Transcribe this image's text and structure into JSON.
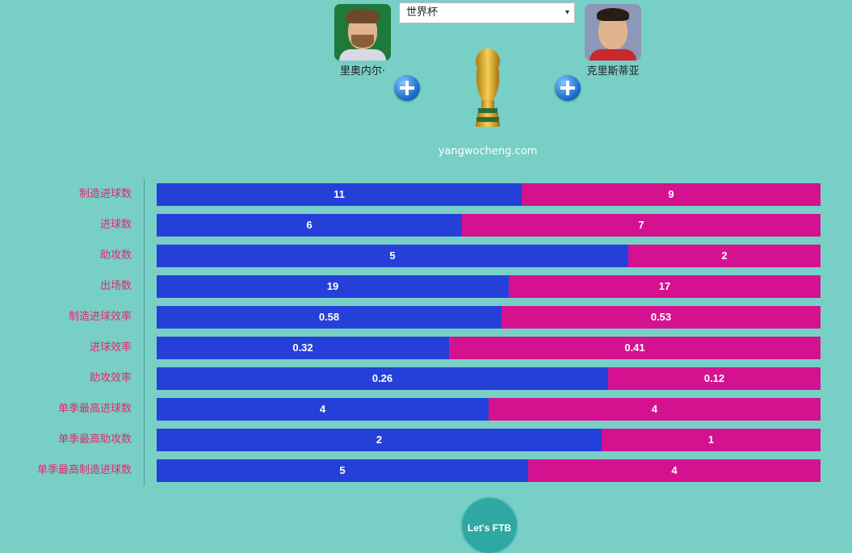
{
  "competition": {
    "selected": "世界杯",
    "arrow": "▾"
  },
  "players": [
    {
      "name": "里奥内尔·",
      "photo": "player-photo-left"
    },
    {
      "name": "克里斯蒂亚",
      "photo": "player-photo-right"
    }
  ],
  "site": "yangwocheng.com",
  "logo_text": "Let's FTB",
  "colors": {
    "player1": "#2540d9",
    "player2": "#d4128f",
    "label": "#e6256f",
    "background": "#78cfc6"
  },
  "icons": {
    "add": "plus-circle-icon",
    "trophy": "world-cup-trophy-icon"
  },
  "stats": [
    {
      "label": "制造进球数",
      "left": "11",
      "right": "9",
      "left_share": 0.55
    },
    {
      "label": "进球数",
      "left": "6",
      "right": "7",
      "left_share": 0.46
    },
    {
      "label": "助攻数",
      "left": "5",
      "right": "2",
      "left_share": 0.71
    },
    {
      "label": "出场数",
      "left": "19",
      "right": "17",
      "left_share": 0.53
    },
    {
      "label": "制造进球效率",
      "left": "0.58",
      "right": "0.53",
      "left_share": 0.52
    },
    {
      "label": "进球效率",
      "left": "0.32",
      "right": "0.41",
      "left_share": 0.44
    },
    {
      "label": "助攻效率",
      "left": "0.26",
      "right": "0.12",
      "left_share": 0.68
    },
    {
      "label": "单季最高进球数",
      "left": "4",
      "right": "4",
      "left_share": 0.5
    },
    {
      "label": "单季最高助攻数",
      "left": "2",
      "right": "1",
      "left_share": 0.67
    },
    {
      "label": "单季最高制造进球数",
      "left": "5",
      "right": "4",
      "left_share": 0.56
    }
  ]
}
